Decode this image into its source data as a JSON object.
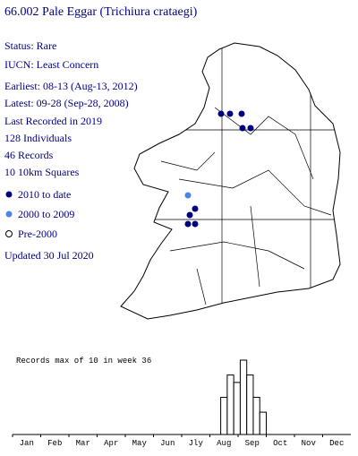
{
  "header": {
    "title": "66.002 Pale Eggar (Trichiura crataegi)"
  },
  "info": [
    "Status: Rare",
    "IUCN: Least Concern",
    "Earliest: 08-13 (Aug-13, 2012)",
    "Latest: 09-28 (Sep-28, 2008)",
    "Last Recorded in 2019",
    "128 Individuals",
    "46 Records",
    "10 10km Squares"
  ],
  "legend": [
    "2010 to date",
    "2000 to 2009",
    "Pre-2000"
  ],
  "updated": "Updated 30 Jul 2020",
  "chart_data": {
    "type": "bar",
    "title": "Records max of 10 in week 36",
    "months": [
      "Jan",
      "Feb",
      "Mar",
      "Apr",
      "May",
      "Jun",
      "Jly",
      "Aug",
      "Sep",
      "Oct",
      "Nov",
      "Dec"
    ],
    "x": [
      33,
      34,
      35,
      36,
      37,
      38,
      39
    ],
    "values": [
      5,
      8,
      7,
      10,
      8,
      5,
      3
    ],
    "xlim": [
      1,
      53
    ],
    "ylim": [
      0,
      10
    ],
    "color": "#ffffff"
  }
}
